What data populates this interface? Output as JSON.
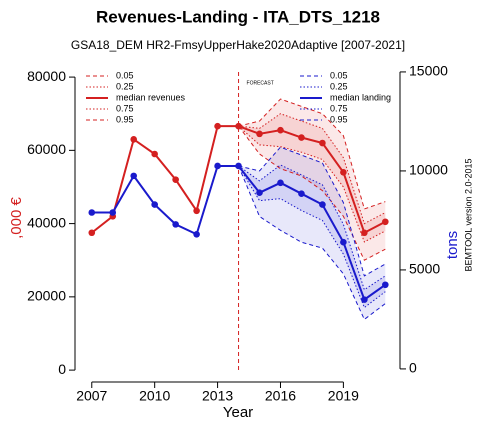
{
  "chart_data": {
    "type": "line",
    "title": "Revenues-Landing - ITA_DTS_1218",
    "subtitle": "GSA18_DEM HR2-FmsyUpperHake2020Adaptive [2007-2021]",
    "x_label": "Year",
    "y_label": ",000 €",
    "y2_label": "tons",
    "side_note": "BEMTOOL version 2.0-2015",
    "forecast_label": "FORECAST",
    "forecast_x": 2014,
    "x": [
      2007,
      2008,
      2009,
      2010,
      2011,
      2012,
      2013,
      2014,
      2015,
      2016,
      2017,
      2018,
      2019,
      2020,
      2021
    ],
    "xlim": [
      2006.2,
      2021.7
    ],
    "xticks": [
      2007,
      2010,
      2013,
      2016,
      2019
    ],
    "ylim": [
      -2700,
      83300
    ],
    "yticks": [
      0,
      20000,
      40000,
      60000,
      80000
    ],
    "y2lim": [
      -560,
      15350
    ],
    "y2ticks": [
      0,
      5000,
      10000,
      15000
    ],
    "series": [
      {
        "name": "0.05",
        "color": "#d42020",
        "dash": "dashed",
        "values": [
          null,
          null,
          null,
          null,
          null,
          null,
          null,
          66600,
          59000,
          55000,
          53000,
          49000,
          42000,
          30000,
          33000
        ]
      },
      {
        "name": "0.25",
        "color": "#d42020",
        "dash": "dotted",
        "values": [
          null,
          null,
          null,
          null,
          null,
          null,
          null,
          66600,
          61500,
          61000,
          59500,
          57500,
          50000,
          35000,
          38000
        ]
      },
      {
        "name": "median revenues",
        "color": "#d42020",
        "dash": "solid",
        "markers": true,
        "values": [
          37500,
          42000,
          63000,
          59000,
          52000,
          43500,
          66600,
          66600,
          64500,
          65500,
          63500,
          62000,
          54000,
          37500,
          40500
        ]
      },
      {
        "name": "0.75",
        "color": "#d42020",
        "dash": "dotted",
        "values": [
          null,
          null,
          null,
          null,
          null,
          null,
          null,
          66600,
          66000,
          70000,
          68000,
          66000,
          58000,
          40000,
          43000
        ]
      },
      {
        "name": "0.95",
        "color": "#d42020",
        "dash": "dashed",
        "values": [
          null,
          null,
          null,
          null,
          null,
          null,
          null,
          66600,
          68000,
          74000,
          72000,
          70000,
          64000,
          44000,
          46000
        ]
      },
      {
        "name": "0.05",
        "color": "#1a1acc",
        "dash": "dashed",
        "axis": "y2",
        "values": [
          null,
          null,
          null,
          null,
          null,
          null,
          null,
          10250,
          7700,
          7000,
          6400,
          6100,
          4800,
          2500,
          3300
        ]
      },
      {
        "name": "0.25",
        "color": "#1a1acc",
        "dash": "dotted",
        "axis": "y2",
        "values": [
          null,
          null,
          null,
          null,
          null,
          null,
          null,
          10250,
          8500,
          8600,
          8000,
          7500,
          5800,
          3100,
          3900
        ]
      },
      {
        "name": "median landing",
        "color": "#1a1acc",
        "dash": "solid",
        "markers": true,
        "axis": "y2",
        "values": [
          7900,
          7900,
          9750,
          8300,
          7300,
          6800,
          10250,
          10250,
          8900,
          9400,
          8850,
          8300,
          6400,
          3500,
          4250
        ]
      },
      {
        "name": "0.75",
        "color": "#1a1acc",
        "dash": "dotted",
        "axis": "y2",
        "values": [
          null,
          null,
          null,
          null,
          null,
          null,
          null,
          10250,
          9500,
          10300,
          9800,
          9300,
          7300,
          4000,
          4700
        ]
      },
      {
        "name": "0.95",
        "color": "#1a1acc",
        "dash": "dashed",
        "axis": "y2",
        "values": [
          null,
          null,
          null,
          null,
          null,
          null,
          null,
          10250,
          10000,
          11200,
          10800,
          10400,
          8400,
          4700,
          5300
        ]
      }
    ]
  }
}
